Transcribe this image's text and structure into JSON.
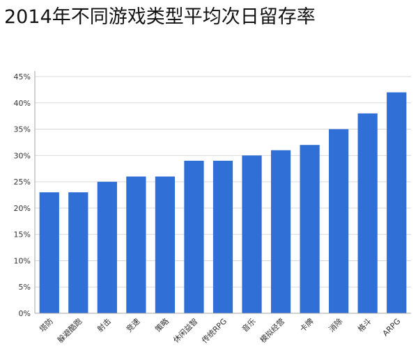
{
  "chart_data": {
    "type": "bar",
    "title": "2014年不同游戏类型平均次日留存率",
    "xlabel": "",
    "ylabel": "",
    "categories": [
      "塔防",
      "躲避酷跑",
      "射击",
      "竞速",
      "策略",
      "休闲益智",
      "传统RPG",
      "音乐",
      "模拟经营",
      "卡牌",
      "消除",
      "格斗",
      "ARPG"
    ],
    "values": [
      23,
      23,
      25,
      26,
      26,
      29,
      29,
      30,
      31,
      32,
      35,
      38,
      42
    ],
    "unit": "%",
    "ylim": [
      0,
      45
    ],
    "yticks": [
      0,
      5,
      10,
      15,
      20,
      25,
      30,
      35,
      40,
      45
    ],
    "grid": true,
    "legend": "none",
    "colors": {
      "bar": "#2f6fd6",
      "grid": "#d9d9d9",
      "axis": "#a6a6a6"
    }
  }
}
